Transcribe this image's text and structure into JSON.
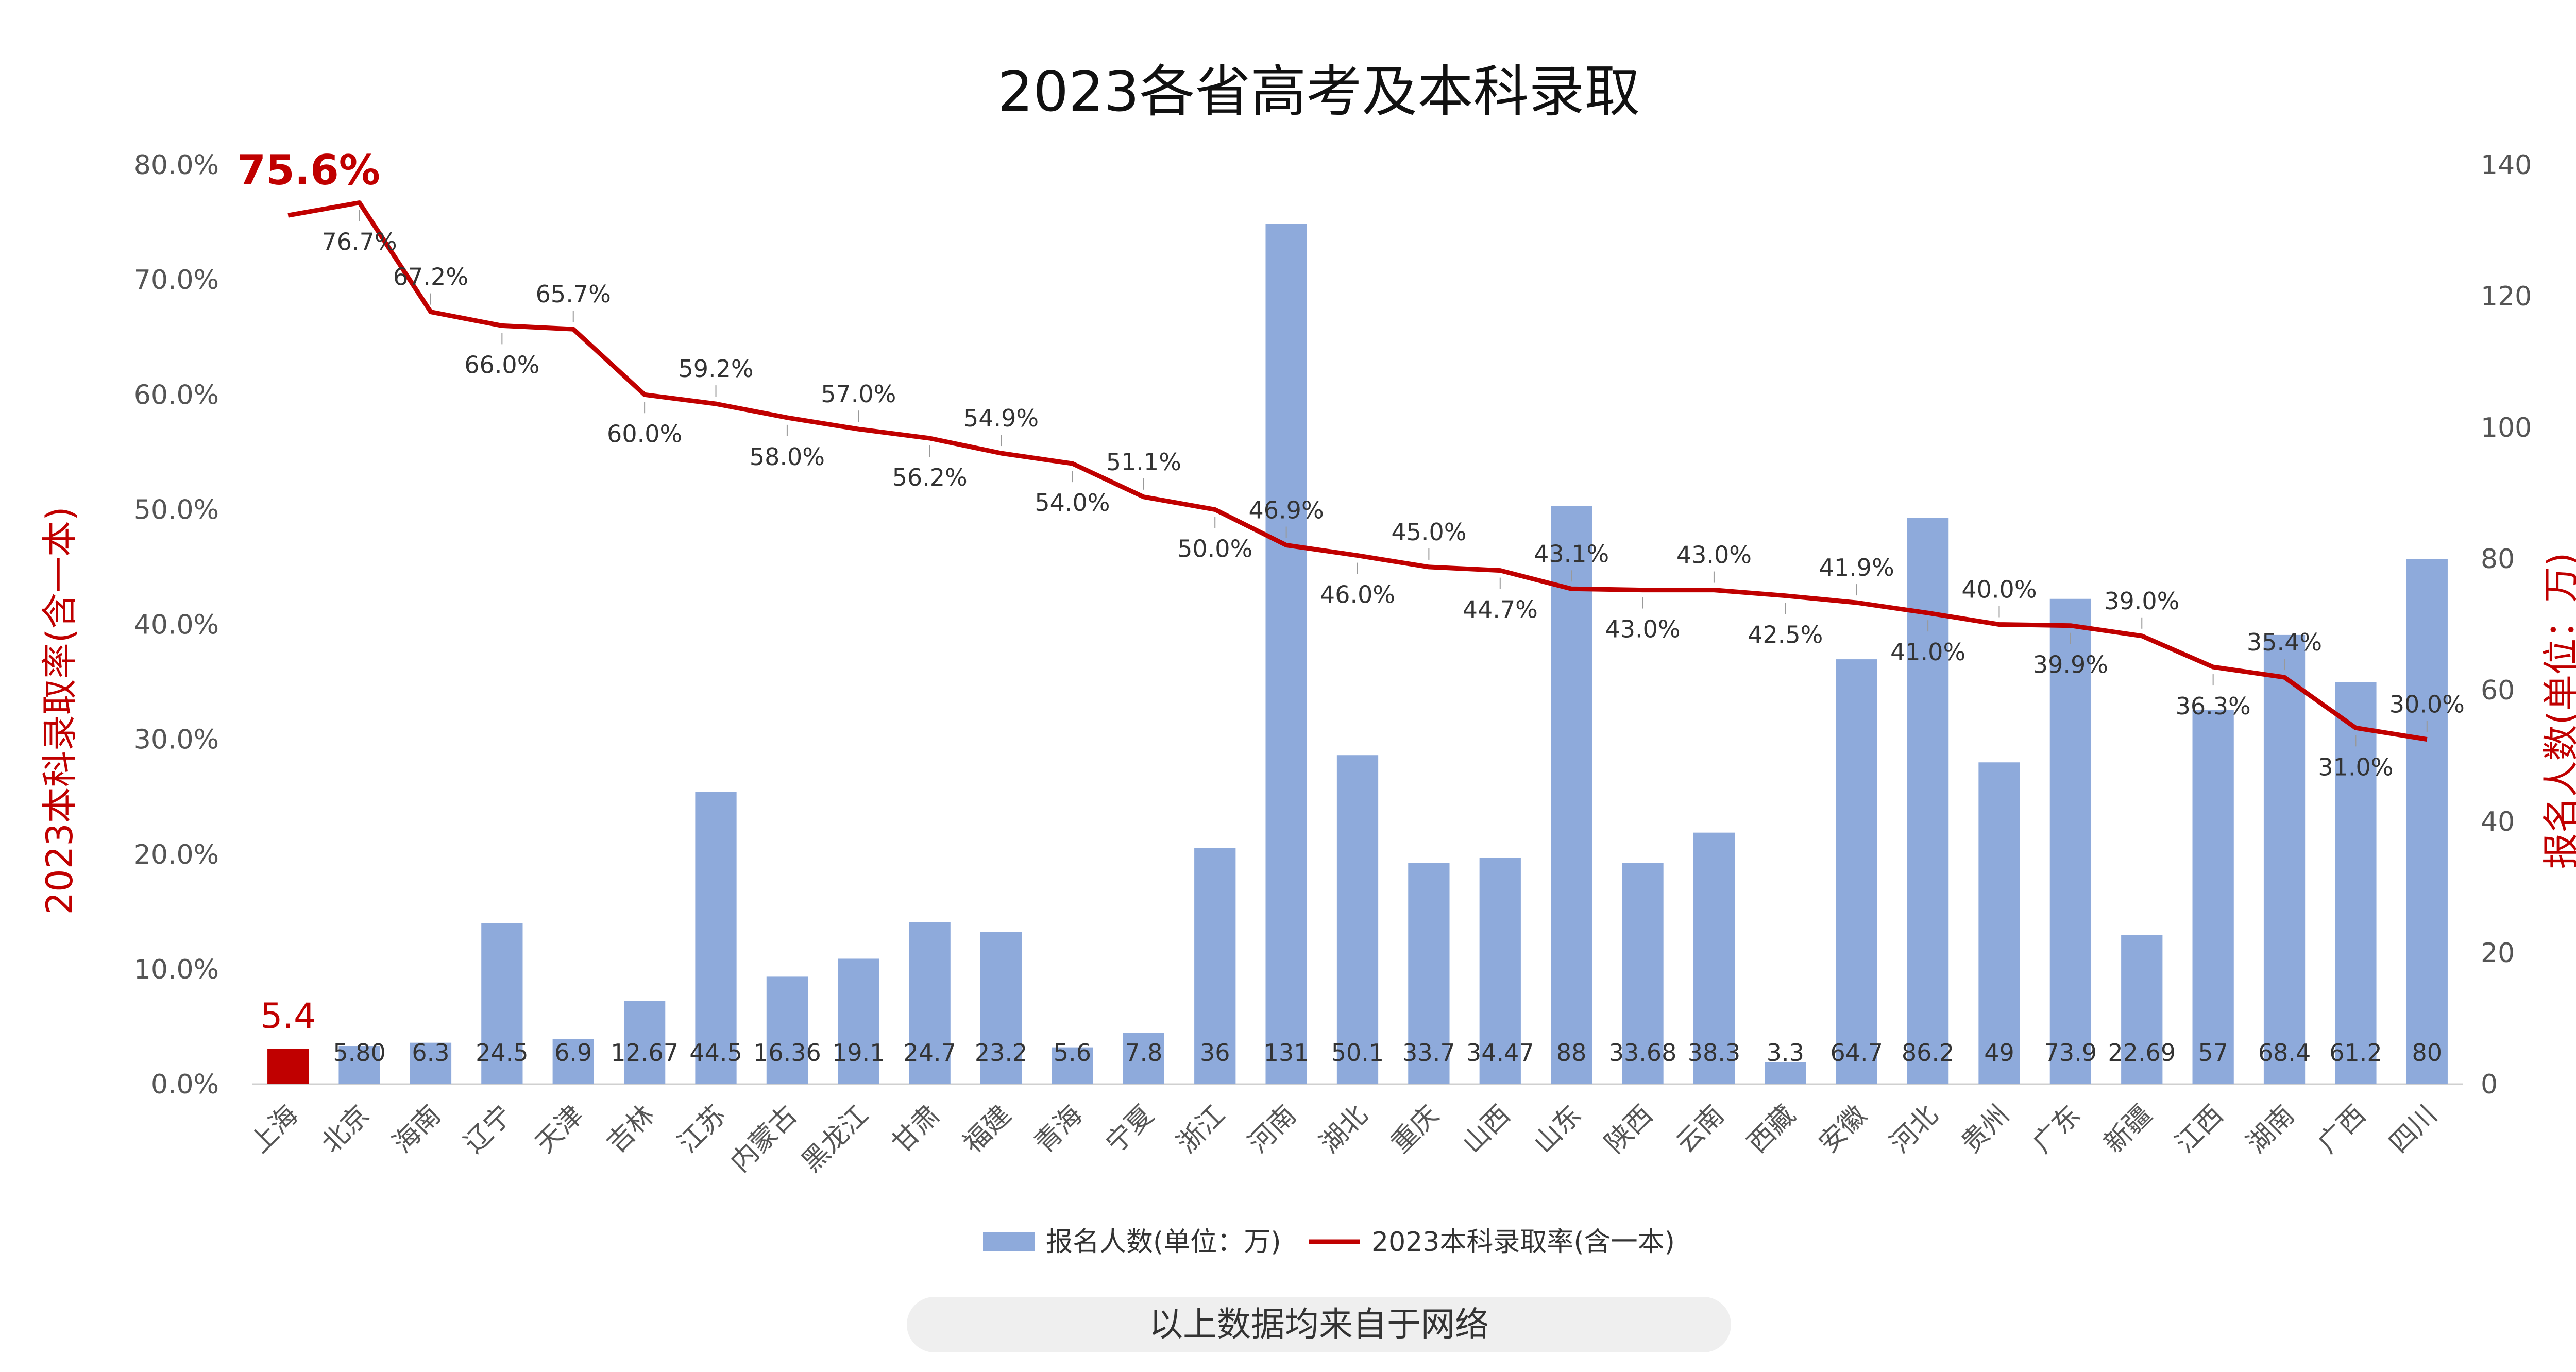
{
  "chart_data": {
    "type": "bar",
    "title": "2023各省高考及本科录取",
    "categories": [
      "上海",
      "北京",
      "海南",
      "辽宁",
      "天津",
      "吉林",
      "江苏",
      "内蒙古",
      "黑龙江",
      "甘肃",
      "福建",
      "青海",
      "宁夏",
      "浙江",
      "河南",
      "湖北",
      "重庆",
      "山西",
      "山东",
      "陕西",
      "云南",
      "西藏",
      "安徽",
      "河北",
      "贵州",
      "广东",
      "新疆",
      "江西",
      "湖南",
      "广西",
      "四川"
    ],
    "series": [
      {
        "name": "报名人数(单位：万)",
        "type": "bar",
        "axis": "right",
        "color": "#8eaadb",
        "values": [
          5.4,
          5.8,
          6.3,
          24.5,
          6.9,
          12.67,
          44.5,
          16.36,
          19.1,
          24.7,
          23.2,
          5.6,
          7.8,
          36,
          131,
          50.1,
          33.7,
          34.47,
          88,
          33.68,
          38.3,
          3.3,
          64.7,
          86.2,
          49,
          73.9,
          22.69,
          57,
          68.4,
          61.2,
          80
        ],
        "labels": [
          "5.4",
          "5.80",
          "6.3",
          "24.5",
          "6.9",
          "12.67",
          "44.5",
          "16.36",
          "19.1",
          "24.7",
          "23.2",
          "5.6",
          "7.8",
          "36",
          "131",
          "50.1",
          "33.7",
          "34.47",
          "88",
          "33.68",
          "38.3",
          "3.3",
          "64.7",
          "86.2",
          "49",
          "73.9",
          "22.69",
          "57",
          "68.4",
          "61.2",
          "80"
        ]
      },
      {
        "name": "2023本科录取率(含一本)",
        "type": "line",
        "axis": "left",
        "color": "#c00000",
        "values": [
          75.6,
          76.7,
          67.2,
          66.0,
          65.7,
          60.0,
          59.2,
          58.0,
          57.0,
          56.2,
          54.9,
          54.0,
          51.1,
          50.0,
          46.9,
          46.0,
          45.0,
          44.7,
          43.1,
          43.0,
          43.0,
          42.5,
          41.9,
          41.0,
          40.0,
          39.9,
          39.0,
          36.3,
          35.4,
          31.0,
          30.0
        ],
        "labels": [
          "75.6%",
          "76.7%",
          "67.2%",
          "66.0%",
          "65.7%",
          "60.0%",
          "59.2%",
          "58.0%",
          "57.0%",
          "56.2%",
          "54.9%",
          "54.0%",
          "51.1%",
          "50.0%",
          "46.9%",
          "46.0%",
          "45.0%",
          "44.7%",
          "43.1%",
          "43.0%",
          "43.0%",
          "42.5%",
          "41.9%",
          "41.0%",
          "40.0%",
          "39.9%",
          "39.0%",
          "36.3%",
          "35.4%",
          "31.0%",
          "30.0%"
        ]
      }
    ],
    "left_axis": {
      "label": "2023本科录取率(含一本)",
      "min": 0,
      "max": 80,
      "step": 10,
      "ticks": [
        "0.0%",
        "10.0%",
        "20.0%",
        "30.0%",
        "40.0%",
        "50.0%",
        "60.0%",
        "70.0%",
        "80.0%"
      ]
    },
    "right_axis": {
      "label": "报名人数(单位：万)",
      "min": 0,
      "max": 140,
      "step": 20,
      "ticks": [
        "0",
        "20",
        "40",
        "60",
        "80",
        "100",
        "120",
        "140"
      ]
    },
    "highlight": {
      "index": 0,
      "bar_color": "#c00000"
    },
    "grid": false,
    "legend": "bottom-center"
  },
  "note": "以上数据均来自于网络",
  "colors": {
    "accent": "#c00000",
    "bar": "#8eaadb",
    "note_bg": "#efefef"
  }
}
